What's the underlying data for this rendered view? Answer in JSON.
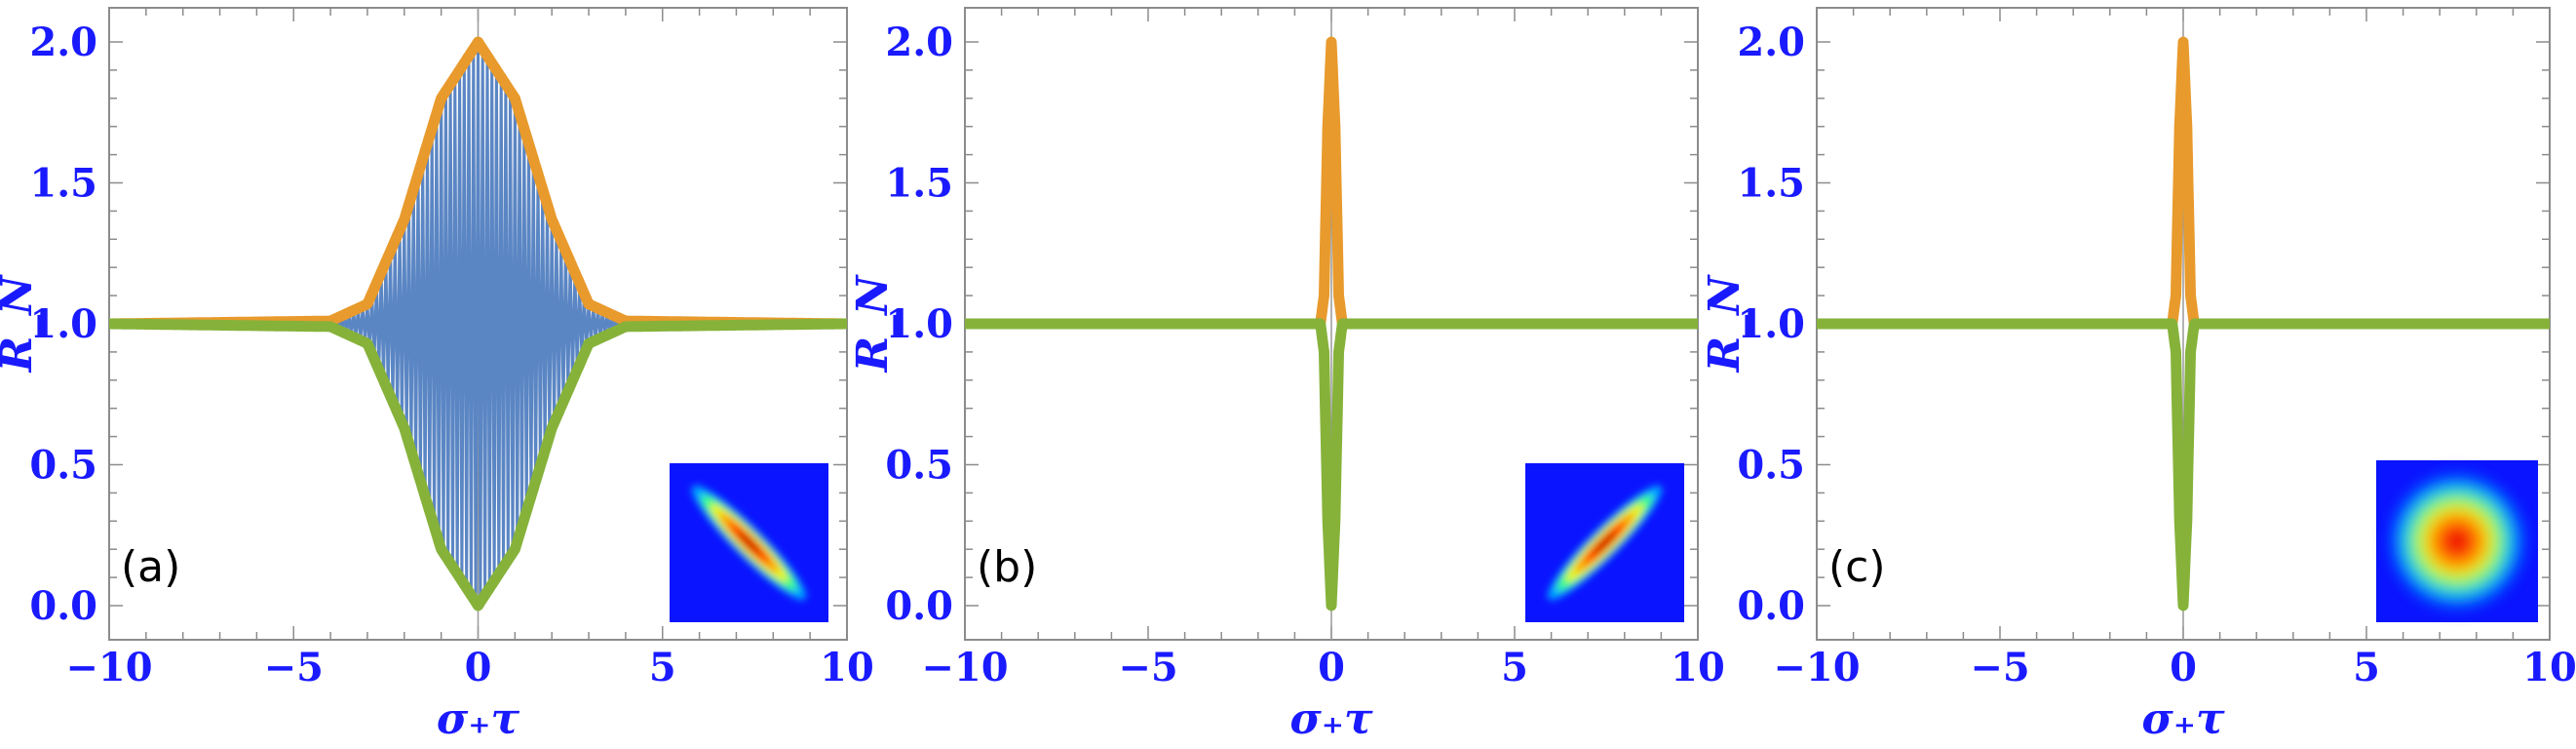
{
  "colors": {
    "axis_text": "#1a1aff",
    "frame": "#8c8c8c",
    "oscillation": "#5b86c4",
    "upper_envelope": "#e89a2c",
    "lower_envelope": "#86b23a"
  },
  "chart_data": [
    {
      "type": "line",
      "panel_label": "(a)",
      "xlabel": "σ₊τ",
      "ylabel": "R_N",
      "xlim": [
        -10,
        10
      ],
      "ylim": [
        0,
        2
      ],
      "xticks": [
        "−10",
        "−5",
        "0",
        "5",
        "10"
      ],
      "yticks": [
        "0.0",
        "0.5",
        "1.0",
        "1.5",
        "2.0"
      ],
      "grid": false,
      "series": [
        {
          "role": "oscillation",
          "color": "#5b86c4",
          "x": [
            -10,
            -4,
            -3,
            -2,
            -1,
            0,
            1,
            2,
            3,
            4,
            10
          ],
          "y_max": [
            1.0,
            1.01,
            1.07,
            1.37,
            1.8,
            2.0,
            1.8,
            1.37,
            1.07,
            1.01,
            1.0
          ],
          "y_min": [
            1.0,
            0.99,
            0.93,
            0.63,
            0.2,
            0.0,
            0.2,
            0.63,
            0.93,
            0.99,
            1.0
          ]
        },
        {
          "role": "upper-envelope",
          "color": "#e89a2c",
          "x": [
            -10,
            -4,
            -3,
            -2,
            -1,
            0,
            1,
            2,
            3,
            4,
            10
          ],
          "y": [
            1.0,
            1.01,
            1.07,
            1.37,
            1.8,
            2.0,
            1.8,
            1.37,
            1.07,
            1.01,
            1.0
          ]
        },
        {
          "role": "lower-envelope",
          "color": "#86b23a",
          "x": [
            -10,
            -4,
            -3,
            -2,
            -1,
            0,
            1,
            2,
            3,
            4,
            10
          ],
          "y": [
            1.0,
            0.99,
            0.93,
            0.63,
            0.2,
            0.0,
            0.2,
            0.63,
            0.93,
            0.99,
            1.0
          ]
        }
      ],
      "inset": {
        "kind": "heatmap",
        "shape": "narrow ellipse along anti-diagonal",
        "colormap": "jet"
      }
    },
    {
      "type": "line",
      "panel_label": "(b)",
      "xlabel": "σ₊τ",
      "ylabel": "R_N",
      "xlim": [
        -10,
        10
      ],
      "ylim": [
        0,
        2
      ],
      "xticks": [
        "−10",
        "−5",
        "0",
        "5",
        "10"
      ],
      "yticks": [
        "0.0",
        "0.5",
        "1.0",
        "1.5",
        "2.0"
      ],
      "grid": false,
      "series": [
        {
          "role": "upper-envelope",
          "color": "#e89a2c",
          "x": [
            -10,
            -0.3,
            -0.2,
            -0.1,
            0,
            0.1,
            0.2,
            0.3,
            10
          ],
          "y": [
            1.0,
            1.0,
            1.1,
            1.7,
            2.0,
            1.7,
            1.1,
            1.0,
            1.0
          ]
        },
        {
          "role": "lower-envelope",
          "color": "#86b23a",
          "x": [
            -10,
            -0.3,
            -0.2,
            -0.1,
            0,
            0.1,
            0.2,
            0.3,
            10
          ],
          "y": [
            1.0,
            1.0,
            0.9,
            0.3,
            0.0,
            0.3,
            0.9,
            1.0,
            1.0
          ]
        }
      ],
      "inset": {
        "kind": "heatmap",
        "shape": "narrow ellipse along diagonal",
        "colormap": "jet"
      }
    },
    {
      "type": "line",
      "panel_label": "(c)",
      "xlabel": "σ₊τ",
      "ylabel": "R_N",
      "xlim": [
        -10,
        10
      ],
      "ylim": [
        0,
        2
      ],
      "xticks": [
        "−10",
        "−5",
        "0",
        "5",
        "10"
      ],
      "yticks": [
        "0.0",
        "0.5",
        "1.0",
        "1.5",
        "2.0"
      ],
      "grid": false,
      "series": [
        {
          "role": "upper-envelope",
          "color": "#e89a2c",
          "x": [
            -10,
            -0.3,
            -0.2,
            -0.1,
            0,
            0.1,
            0.2,
            0.3,
            10
          ],
          "y": [
            1.0,
            1.0,
            1.1,
            1.7,
            2.0,
            1.7,
            1.1,
            1.0,
            1.0
          ]
        },
        {
          "role": "lower-envelope",
          "color": "#86b23a",
          "x": [
            -10,
            -0.3,
            -0.2,
            -0.1,
            0,
            0.1,
            0.2,
            0.3,
            10
          ],
          "y": [
            1.0,
            1.0,
            0.9,
            0.3,
            0.0,
            0.3,
            0.9,
            1.0,
            1.0
          ]
        }
      ],
      "inset": {
        "kind": "heatmap",
        "shape": "circular",
        "colormap": "jet"
      }
    }
  ]
}
